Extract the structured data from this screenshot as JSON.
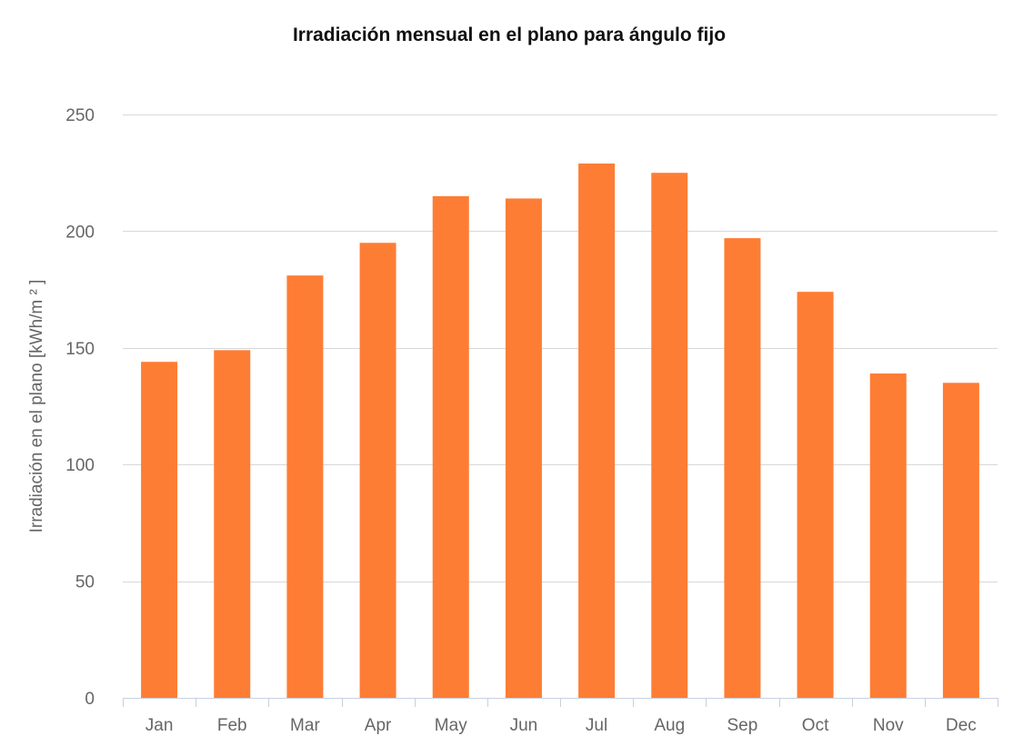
{
  "chart_data": {
    "type": "bar",
    "title": "Irradiación mensual en el plano para ángulo fijo",
    "xlabel": "",
    "ylabel": "Irradiación en el plano [kWh/m ² ]",
    "categories": [
      "Jan",
      "Feb",
      "Mar",
      "Apr",
      "May",
      "Jun",
      "Jul",
      "Aug",
      "Sep",
      "Oct",
      "Nov",
      "Dec"
    ],
    "series": [
      {
        "name": "Irradiación mensual en el plano",
        "values": [
          144,
          149,
          181,
          195,
          215,
          214,
          229,
          225,
          197,
          174,
          139,
          135
        ]
      }
    ],
    "ylim": [
      0,
      250
    ],
    "yticks": [
      0,
      50,
      100,
      150,
      200,
      250
    ],
    "grid": true,
    "legend": "none",
    "colors": {
      "bar": "#fe7d35",
      "grid": "#d8d8d8",
      "axis": "#c7d0e0",
      "text": "#666666",
      "title": "#111111"
    }
  }
}
